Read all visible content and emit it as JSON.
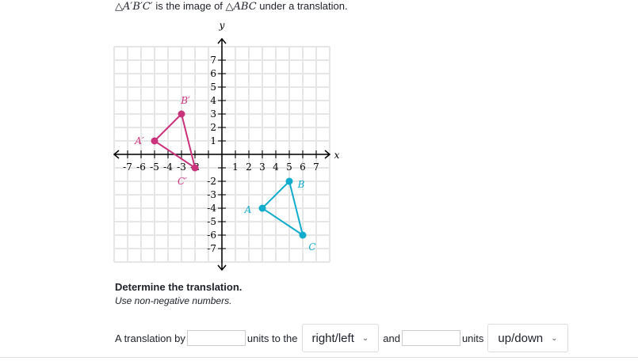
{
  "prompt": {
    "image": "△A′B′C′",
    "mid": " is the image of ",
    "original": "△ABC",
    "end": " under a translation."
  },
  "graph": {
    "x_label": "x",
    "y_label": "y",
    "range": [
      -8,
      8
    ],
    "x_tick_labels": [
      "-7",
      "-6",
      "-5",
      "-4",
      "-3",
      "-2",
      "1",
      "2",
      "3",
      "4",
      "5",
      "6",
      "7"
    ],
    "y_tick_labels": [
      "7",
      "6",
      "5",
      "4",
      "3",
      "2",
      "1",
      "-2",
      "-3",
      "-4",
      "-5",
      "-6",
      "-7"
    ],
    "colors": {
      "image": "#ca337c",
      "original": "#1fab54",
      "original_actual": "#11accd",
      "grid": "#e6e6e6"
    },
    "image_triangle": {
      "points": [
        {
          "label": "A′",
          "x": -5,
          "y": 1
        },
        {
          "label": "B′",
          "x": -3,
          "y": 3
        },
        {
          "label": "C′",
          "x": -2,
          "y": -1
        }
      ]
    },
    "original_triangle": {
      "points": [
        {
          "label": "A",
          "x": 3,
          "y": -4
        },
        {
          "label": "B",
          "x": 5,
          "y": -2
        },
        {
          "label": "C",
          "x": 6,
          "y": -6
        }
      ]
    }
  },
  "question": {
    "title": "Determine the translation.",
    "hint": "Use non-negative numbers."
  },
  "answer_row": {
    "prefix": "A translation by",
    "input1_value": "",
    "mid1": "units to the",
    "dropdown1": "right/left",
    "mid2": "and",
    "input2_value": "",
    "mid3": "units",
    "dropdown2": "up/down"
  }
}
